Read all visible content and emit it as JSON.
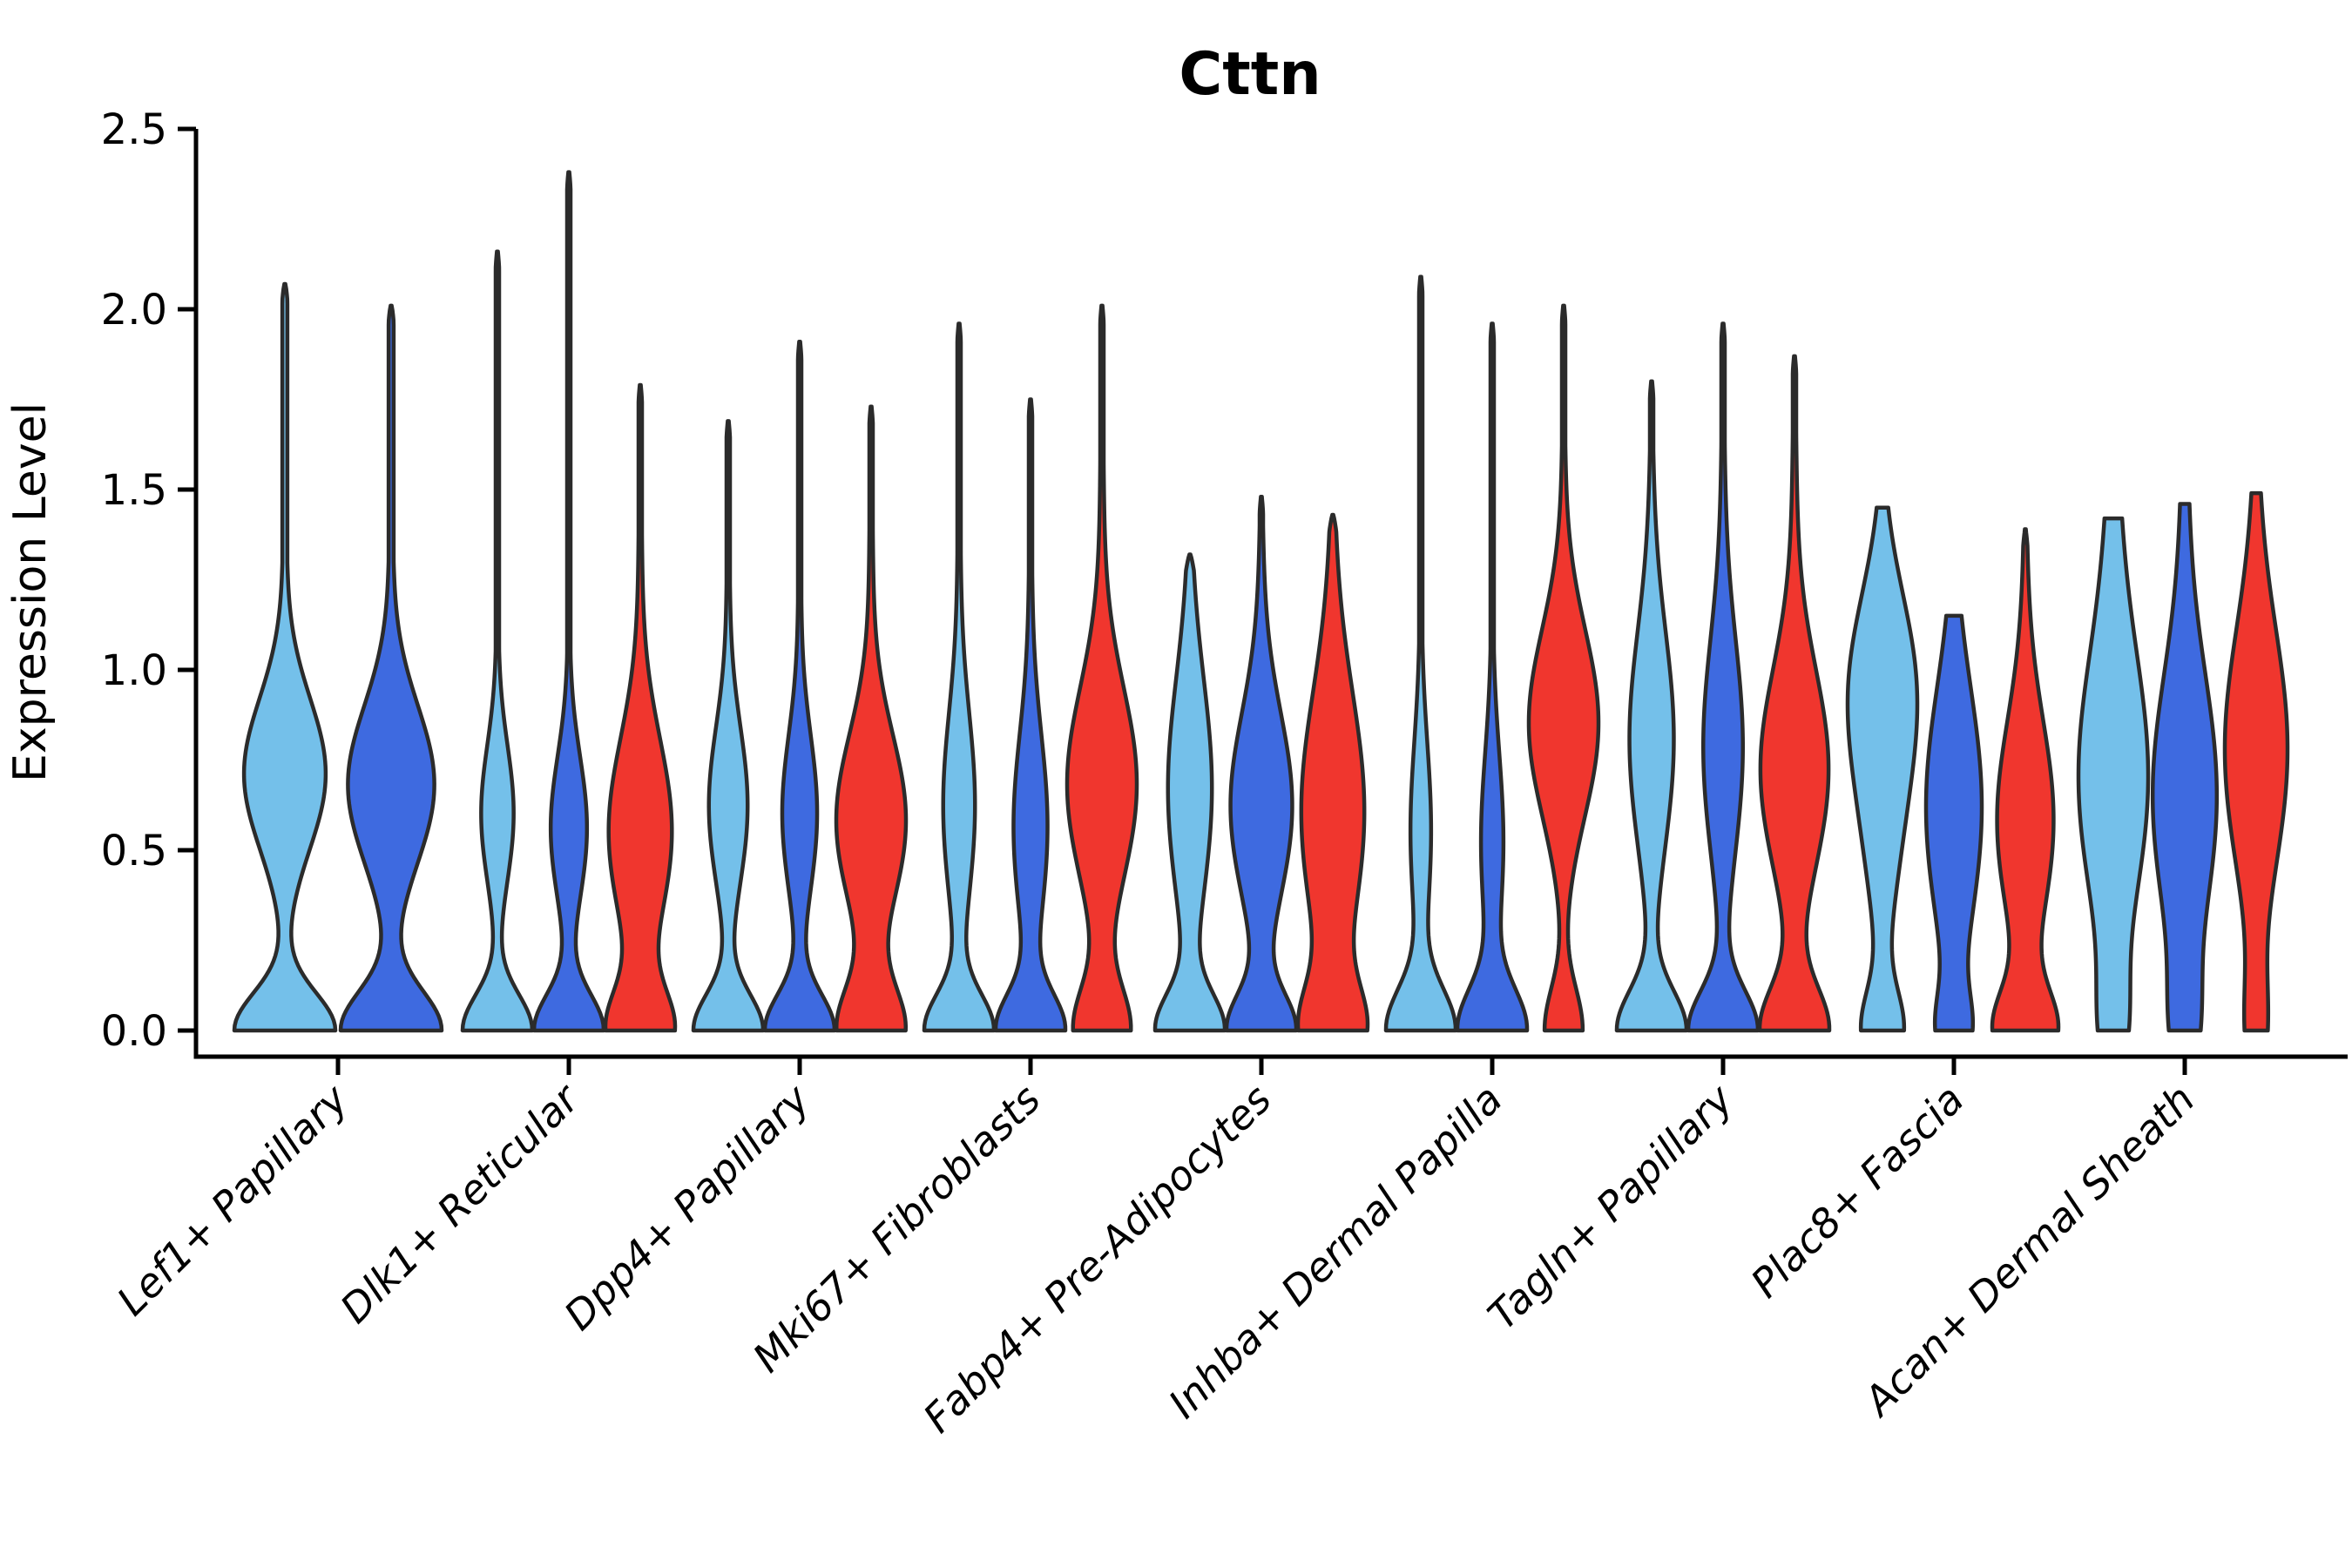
{
  "title": "Cttn",
  "chart_data": {
    "type": "violin",
    "title": "Cttn",
    "ylabel": "Expression Level",
    "xlabel": "",
    "ylim": [
      0.0,
      2.5
    ],
    "yticks": [
      "0.0",
      "0.5",
      "1.0",
      "1.5",
      "2.0",
      "2.5"
    ],
    "grid": false,
    "legend_position": "none",
    "series_order": [
      "light_blue",
      "dark_blue",
      "red"
    ],
    "colors": {
      "light_blue": "#74C0EA",
      "dark_blue": "#3E6AE0",
      "red": "#F0362E",
      "outline": "#2B2B2B",
      "axis": "#000000"
    },
    "groups": [
      {
        "label": "Lef1+ Papillary",
        "violins": [
          {
            "series": "light_blue",
            "max": 2.07,
            "scale": 1.0,
            "kde": [
              [
                1.0,
                0,
                0.105
              ],
              [
                0.8,
                0.71,
                0.21
              ],
              [
                0.035,
                1.4,
                0.45
              ]
            ]
          },
          {
            "series": "dark_blue",
            "max": 2.01,
            "scale": 1.0,
            "kde": [
              [
                1.0,
                0,
                0.11
              ],
              [
                0.85,
                0.68,
                0.22
              ],
              [
                0.035,
                1.35,
                0.45
              ]
            ]
          }
        ]
      },
      {
        "label": "Dlk1+ Reticular",
        "violins": [
          {
            "series": "light_blue",
            "max": 2.16,
            "scale": 1.0,
            "kde": [
              [
                1.0,
                0,
                0.1
              ],
              [
                0.46,
                0.6,
                0.19
              ],
              [
                0.03,
                1.4,
                0.5
              ]
            ]
          },
          {
            "series": "dark_blue",
            "max": 2.38,
            "scale": 1.0,
            "kde": [
              [
                1.0,
                0,
                0.1
              ],
              [
                0.52,
                0.56,
                0.2
              ],
              [
                0.03,
                1.45,
                0.5
              ]
            ]
          },
          {
            "series": "red",
            "max": 1.79,
            "scale": 1.0,
            "kde": [
              [
                1.0,
                0,
                0.11
              ],
              [
                1.0,
                0.55,
                0.26
              ],
              [
                0.05,
                1.3,
                0.4
              ]
            ]
          }
        ]
      },
      {
        "label": "Dpp4+ Papillary",
        "violins": [
          {
            "series": "light_blue",
            "max": 1.69,
            "scale": 1.0,
            "kde": [
              [
                1.0,
                0,
                0.1
              ],
              [
                0.55,
                0.62,
                0.22
              ],
              [
                0.04,
                1.25,
                0.4
              ]
            ]
          },
          {
            "series": "dark_blue",
            "max": 1.91,
            "scale": 1.0,
            "kde": [
              [
                1.0,
                0,
                0.1
              ],
              [
                0.5,
                0.6,
                0.22
              ],
              [
                0.04,
                1.35,
                0.4
              ]
            ]
          },
          {
            "series": "red",
            "max": 1.73,
            "scale": 1.0,
            "kde": [
              [
                0.95,
                0,
                0.12
              ],
              [
                1.0,
                0.58,
                0.24
              ],
              [
                0.05,
                1.25,
                0.4
              ]
            ]
          }
        ]
      },
      {
        "label": "Mki67+ Fibroblasts",
        "violins": [
          {
            "series": "light_blue",
            "max": 1.96,
            "scale": 1.0,
            "kde": [
              [
                1.0,
                0,
                0.1
              ],
              [
                0.46,
                0.62,
                0.26
              ],
              [
                0.04,
                1.4,
                0.45
              ]
            ]
          },
          {
            "series": "dark_blue",
            "max": 1.75,
            "scale": 1.0,
            "kde": [
              [
                1.0,
                0,
                0.1
              ],
              [
                0.5,
                0.56,
                0.26
              ],
              [
                0.04,
                1.25,
                0.45
              ]
            ]
          },
          {
            "series": "red",
            "max": 2.01,
            "scale": 1.0,
            "kde": [
              [
                0.8,
                0,
                0.12
              ],
              [
                1.0,
                0.68,
                0.27
              ],
              [
                0.05,
                1.4,
                0.45
              ]
            ]
          }
        ]
      },
      {
        "label": "Fabp4+ Pre-Adipocytes",
        "violins": [
          {
            "series": "light_blue",
            "max": 1.32,
            "scale": 1.0,
            "kde": [
              [
                1.0,
                0,
                0.1
              ],
              [
                0.65,
                0.66,
                0.3
              ],
              [
                0.05,
                1.1,
                0.3
              ]
            ]
          },
          {
            "series": "dark_blue",
            "max": 1.48,
            "scale": 1.0,
            "kde": [
              [
                0.95,
                0,
                0.1
              ],
              [
                0.88,
                0.62,
                0.26
              ],
              [
                0.05,
                1.2,
                0.3
              ]
            ]
          },
          {
            "series": "red",
            "max": 1.43,
            "scale": 1.0,
            "kde": [
              [
                0.92,
                0,
                0.12
              ],
              [
                1.0,
                0.6,
                0.33
              ],
              [
                0.06,
                1.2,
                0.35
              ]
            ]
          }
        ]
      },
      {
        "label": "Inhba+ Dermal Papilla",
        "violins": [
          {
            "series": "light_blue",
            "max": 2.09,
            "scale": 1.0,
            "kde": [
              [
                1.0,
                0,
                0.115
              ],
              [
                0.3,
                0.55,
                0.25
              ],
              [
                0.025,
                1.5,
                0.5
              ]
            ]
          },
          {
            "series": "dark_blue",
            "max": 1.96,
            "scale": 1.0,
            "kde": [
              [
                1.0,
                0,
                0.115
              ],
              [
                0.33,
                0.52,
                0.25
              ],
              [
                0.025,
                1.45,
                0.5
              ]
            ]
          },
          {
            "series": "red",
            "max": 2.01,
            "scale": 1.0,
            "kde": [
              [
                0.55,
                0,
                0.12
              ],
              [
                1.0,
                0.85,
                0.26
              ],
              [
                0.04,
                1.5,
                0.45
              ]
            ]
          }
        ]
      },
      {
        "label": "Tagln+ Papillary",
        "violins": [
          {
            "series": "light_blue",
            "max": 1.8,
            "scale": 1.0,
            "kde": [
              [
                0.95,
                0,
                0.11
              ],
              [
                0.6,
                0.8,
                0.3
              ],
              [
                0.04,
                1.35,
                0.4
              ]
            ]
          },
          {
            "series": "dark_blue",
            "max": 1.96,
            "scale": 1.0,
            "kde": [
              [
                0.92,
                0,
                0.11
              ],
              [
                0.52,
                0.78,
                0.3
              ],
              [
                0.04,
                1.45,
                0.45
              ]
            ]
          },
          {
            "series": "red",
            "max": 1.87,
            "scale": 1.0,
            "kde": [
              [
                0.85,
                0,
                0.12
              ],
              [
                0.85,
                0.72,
                0.28
              ],
              [
                0.05,
                1.4,
                0.4
              ]
            ]
          }
        ]
      },
      {
        "label": "Plac8+ Fascia",
        "violins": [
          {
            "series": "light_blue",
            "max": 1.45,
            "scale": 1.0,
            "kde": [
              [
                0.62,
                0,
                0.11
              ],
              [
                1.0,
                0.95,
                0.27
              ],
              [
                0.35,
                0.5,
                0.25
              ]
            ]
          },
          {
            "series": "dark_blue",
            "max": 1.15,
            "scale": 0.8,
            "kde": [
              [
                0.5,
                0,
                0.1
              ],
              [
                1.0,
                0.62,
                0.33
              ]
            ]
          },
          {
            "series": "red",
            "max": 1.39,
            "scale": 0.95,
            "kde": [
              [
                0.9,
                0,
                0.11
              ],
              [
                0.85,
                0.58,
                0.28
              ],
              [
                0.05,
                1.2,
                0.3
              ]
            ]
          }
        ]
      },
      {
        "label": "Acan+ Dermal Sheath",
        "violins": [
          {
            "series": "light_blue",
            "max": 1.42,
            "scale": 1.0,
            "kde": [
              [
                0.3,
                0,
                0.15
              ],
              [
                1.0,
                0.7,
                0.36
              ],
              [
                0.12,
                1.45,
                0.3
              ]
            ]
          },
          {
            "series": "dark_blue",
            "max": 1.46,
            "scale": 0.92,
            "kde": [
              [
                0.32,
                0,
                0.15
              ],
              [
                1.0,
                0.65,
                0.35
              ],
              [
                0.08,
                1.5,
                0.3
              ]
            ]
          },
          {
            "series": "red",
            "max": 1.49,
            "scale": 0.9,
            "kde": [
              [
                0.3,
                0,
                0.15
              ],
              [
                1.0,
                0.78,
                0.34
              ],
              [
                0.04,
                1.5,
                0.25
              ]
            ]
          }
        ]
      }
    ]
  }
}
